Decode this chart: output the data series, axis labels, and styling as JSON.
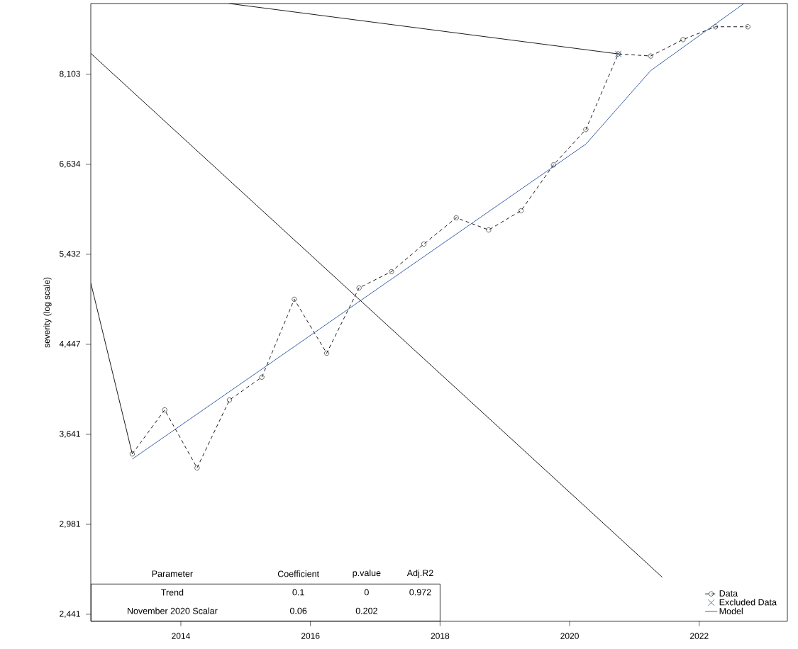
{
  "chart_data": {
    "type": "line",
    "ylabel": "severity (log scale)",
    "log": true,
    "legend": "bottom right",
    "xlim": [
      2012.61,
      2023.36
    ],
    "ylim": [
      2403,
      9483
    ],
    "xticks": [
      2014,
      2016,
      2018,
      2020,
      2022
    ],
    "yticks": [
      {
        "value": 2441,
        "label": "2,441"
      },
      {
        "value": 2981,
        "label": "2,981"
      },
      {
        "value": 3641,
        "label": "3,641"
      },
      {
        "value": 4447,
        "label": "4,447"
      },
      {
        "value": 5432,
        "label": "5,432"
      },
      {
        "value": 6634,
        "label": "6,634"
      },
      {
        "value": 8103,
        "label": "8,103"
      }
    ],
    "series": [
      {
        "name": "Data",
        "color": "#000000",
        "line_style": "dashed",
        "marker": "circle",
        "x": [
          2013.25,
          2013.75,
          2014.25,
          2014.75,
          2015.25,
          2015.75,
          2016.25,
          2016.75,
          2017.25,
          2017.75,
          2018.25,
          2018.75,
          2019.25,
          2019.75,
          2020.25,
          2020.75,
          2021.25,
          2021.75,
          2022.25,
          2022.75
        ],
        "values": [
          3486,
          3844,
          3379,
          3930,
          4134,
          4915,
          4360,
          5041,
          5226,
          5557,
          5891,
          5734,
          5984,
          6625,
          7168,
          8478,
          8438,
          8752,
          9005,
          9005
        ]
      },
      {
        "name": "Excluded Data",
        "type": "scatter",
        "color": "#1f4e9c",
        "marker": "cross",
        "x": [
          2020.75
        ],
        "values": [
          8478
        ]
      },
      {
        "name": "Model",
        "color": "#2a52a0",
        "line_style": "solid",
        "marker": "none",
        "x": [
          2013.25,
          2020.25,
          2021.25,
          2022.69
        ],
        "values": [
          3446,
          6938,
          8168,
          9483
        ]
      },
      {
        "color": "#000000",
        "line_style": "solid",
        "marker": "none",
        "x": [
          2012.61,
          2013.25
        ],
        "values": [
          5097,
          3486
        ]
      },
      {
        "color": "#000000",
        "line_style": "solid",
        "marker": "none",
        "x": [
          2012.61,
          2021.43
        ],
        "values": [
          8488,
          2650
        ]
      },
      {
        "color": "#000000",
        "line_style": "solid",
        "marker": "none",
        "x": [
          2014.74,
          2020.75
        ],
        "values": [
          9483,
          8478
        ]
      }
    ],
    "annotations": [
      "Parameter",
      "Coefficient",
      "p.value",
      "Adj.R2",
      "Trend",
      "0.1",
      "0",
      "0.972",
      "November 2020 Scalar",
      "0.06",
      "0.202"
    ]
  }
}
